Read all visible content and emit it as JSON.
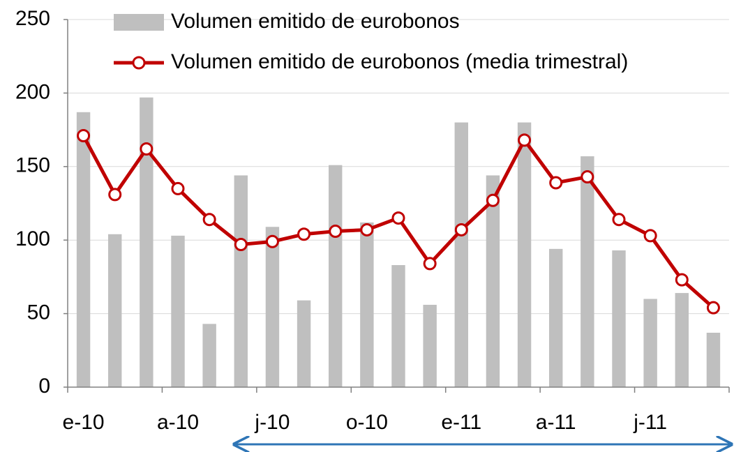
{
  "chart_data": {
    "type": "combo",
    "categories": [
      "e-10",
      null,
      null,
      "a-10",
      null,
      null,
      "j-10",
      null,
      null,
      "o-10",
      null,
      null,
      "e-11",
      null,
      null,
      "a-11",
      null,
      null,
      "j-11",
      null,
      null
    ],
    "series": [
      {
        "name": "Volumen emitido de eurobonos",
        "type": "bar",
        "color": "#bfbfbf",
        "values": [
          187,
          104,
          197,
          103,
          43,
          144,
          109,
          59,
          151,
          112,
          83,
          56,
          180,
          144,
          180,
          94,
          157,
          93,
          60,
          64,
          37
        ]
      },
      {
        "name": "Volumen emitido de eurobonos (media trimestral)",
        "type": "line",
        "color": "#c00000",
        "values": [
          171,
          131,
          162,
          135,
          114,
          97,
          99,
          104,
          106,
          107,
          115,
          84,
          107,
          127,
          168,
          139,
          143,
          114,
          103,
          73,
          54
        ]
      }
    ],
    "ylim": [
      0,
      250
    ],
    "yticks": [
      0,
      50,
      100,
      150,
      200,
      250
    ],
    "grid": true
  }
}
